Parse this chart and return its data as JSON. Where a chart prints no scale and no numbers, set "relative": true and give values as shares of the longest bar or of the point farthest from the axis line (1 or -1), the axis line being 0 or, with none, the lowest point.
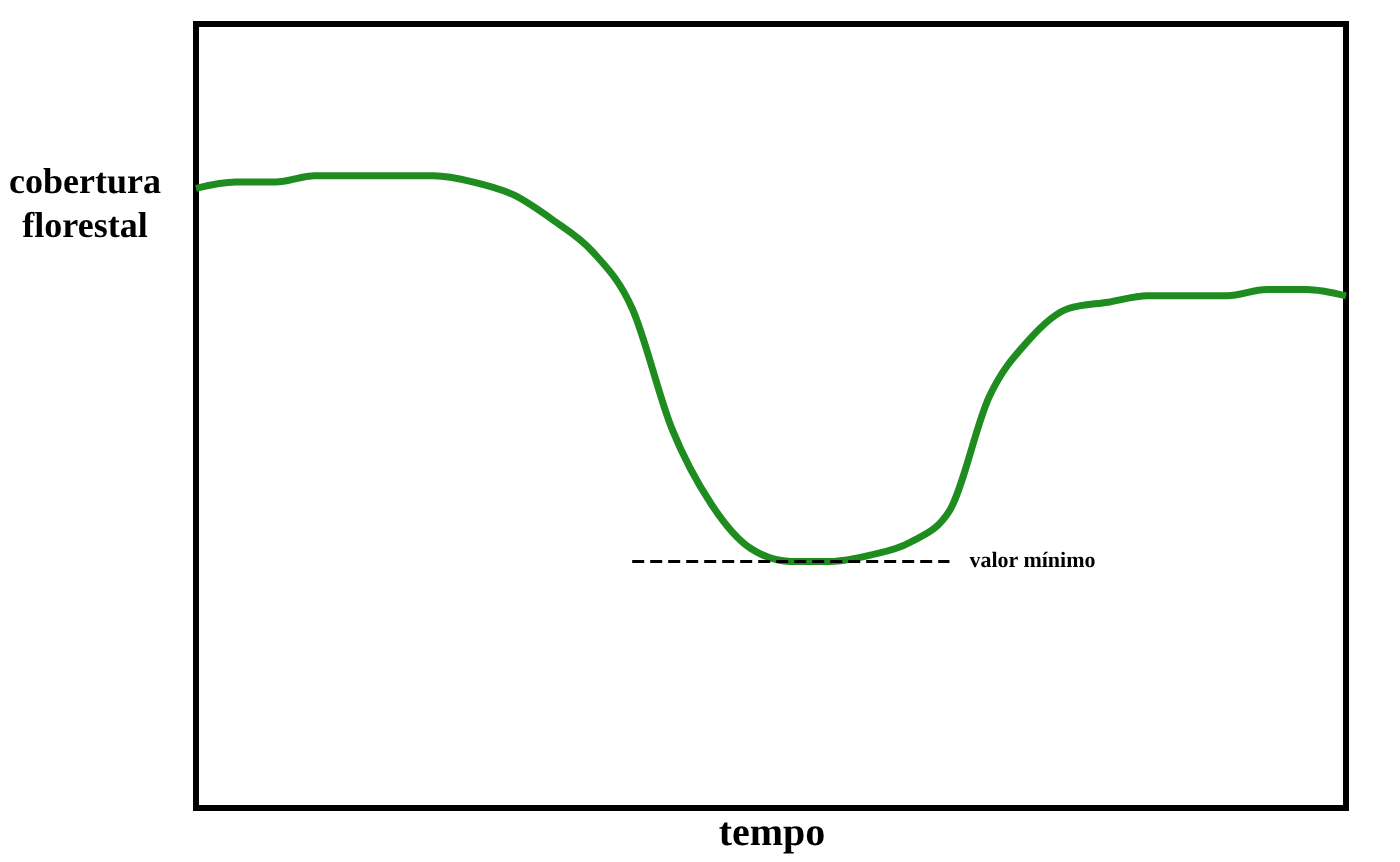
{
  "chart_data": {
    "type": "line",
    "relative": true,
    "xlabel": "tempo",
    "ylabel": "cobertura florestal",
    "categories": [
      null,
      null,
      null,
      null,
      null,
      null,
      null,
      null,
      null,
      null,
      null,
      null,
      null,
      null,
      null,
      null,
      null,
      null,
      null,
      null,
      null,
      null,
      null,
      null,
      null,
      null,
      null,
      null,
      null,
      null
    ],
    "series": [
      {
        "color": "#1e8c1e",
        "values": [
          0.98,
          0.99,
          0.99,
          1,
          1,
          1,
          1,
          0.99,
          0.97,
          0.93,
          0.88,
          0.79,
          0.6,
          0.48,
          0.41,
          0.39,
          0.39,
          0.4,
          0.42,
          0.47,
          0.65,
          0.74,
          0.79,
          0.8,
          0.81,
          0.81,
          0.81,
          0.82,
          0.82,
          0.81
        ]
      }
    ],
    "ref_lines": [
      {
        "axis": "y",
        "value": 0.39,
        "label": "valor mínimo",
        "color": "#000000",
        "line_style": "dashed"
      }
    ],
    "grid": false,
    "marker": "none",
    "line_style": "solid"
  }
}
